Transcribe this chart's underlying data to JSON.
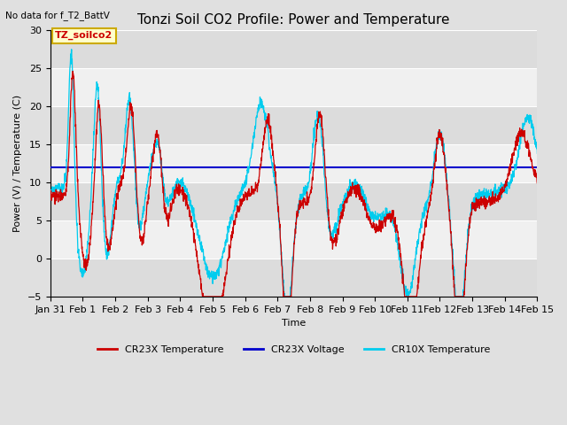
{
  "title": "Tonzi Soil CO2 Profile: Power and Temperature",
  "subtitle": "No data for f_T2_BattV",
  "xlabel": "Time",
  "ylabel": "Power (V) / Temperature (C)",
  "ylim": [
    -5,
    30
  ],
  "xlim": [
    0,
    15
  ],
  "x_tick_labels": [
    "Jan 31",
    "Feb 1",
    "Feb 2",
    "Feb 3",
    "Feb 4",
    "Feb 5",
    "Feb 6",
    "Feb 7",
    "Feb 8",
    "Feb 9",
    "Feb 10",
    "Feb 11",
    "Feb 12",
    "Feb 13",
    "Feb 14",
    "Feb 15"
  ],
  "voltage_value": 12.0,
  "legend_label": "TZ_soilco2",
  "cr23x_temp_color": "#cc0000",
  "cr10x_temp_color": "#00ccee",
  "cr23x_volt_color": "#0000cc",
  "background_color": "#e0e0e0",
  "plot_bg_color": "#f0f0f0",
  "stripe_color": "#dcdcdc",
  "title_fontsize": 11,
  "label_fontsize": 8,
  "tick_fontsize": 8,
  "legend_box_color": "#ffffcc",
  "legend_box_edge": "#ccaa00"
}
